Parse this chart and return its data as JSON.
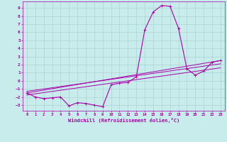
{
  "title": "",
  "xlabel": "Windchill (Refroidissement éolien,°C)",
  "ylabel": "",
  "background_color": "#c8ecec",
  "grid_color": "#aad4d4",
  "line_color": "#aa00aa",
  "xlim": [
    -0.5,
    23.5
  ],
  "ylim": [
    -3.7,
    9.8
  ],
  "yticks": [
    -3,
    -2,
    -1,
    0,
    1,
    2,
    3,
    4,
    5,
    6,
    7,
    8,
    9
  ],
  "xticks": [
    0,
    1,
    2,
    3,
    4,
    5,
    6,
    7,
    8,
    9,
    10,
    11,
    12,
    13,
    14,
    15,
    16,
    17,
    18,
    19,
    20,
    21,
    22,
    23
  ],
  "series": [
    {
      "x": [
        0,
        1,
        2,
        3,
        4,
        5,
        6,
        7,
        8,
        9,
        10,
        11,
        12,
        13,
        14,
        15,
        16,
        17,
        18,
        19,
        20,
        21,
        22,
        23
      ],
      "y": [
        -1.5,
        -2.0,
        -2.2,
        -2.1,
        -2.0,
        -3.1,
        -2.7,
        -2.8,
        -3.0,
        -3.2,
        -0.5,
        -0.3,
        -0.2,
        0.5,
        6.3,
        8.5,
        9.3,
        9.2,
        6.5,
        1.5,
        0.7,
        1.2,
        2.3,
        2.5
      ],
      "marker": true,
      "linewidth": 0.8
    },
    {
      "x": [
        0,
        23
      ],
      "y": [
        -1.5,
        2.5
      ],
      "marker": false,
      "linewidth": 0.7
    },
    {
      "x": [
        0,
        23
      ],
      "y": [
        -1.75,
        1.6
      ],
      "marker": false,
      "linewidth": 0.7
    },
    {
      "x": [
        0,
        23
      ],
      "y": [
        -1.3,
        2.1
      ],
      "marker": false,
      "linewidth": 0.7
    }
  ]
}
